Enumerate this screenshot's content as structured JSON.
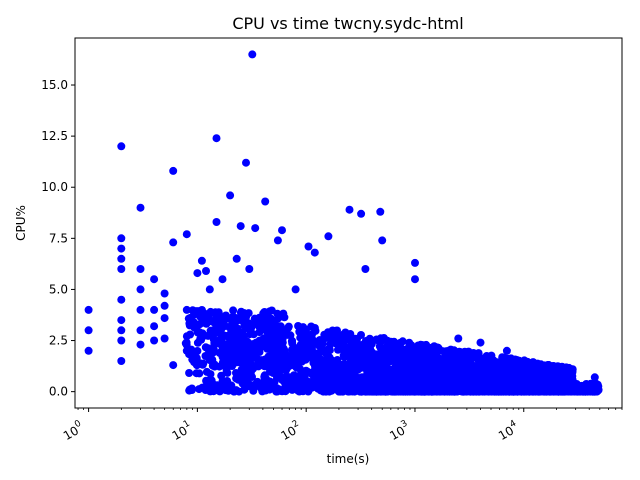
{
  "chart_data": {
    "type": "scatter",
    "title": "CPU vs time twcny.sydc-html",
    "xlabel": "time(s)",
    "ylabel": "CPU%",
    "xscale": "log",
    "xlim": [
      0.75,
      80000
    ],
    "ylim": [
      -0.8,
      17.3
    ],
    "grid": false,
    "marker_color": "#0000ff",
    "x_ticks": [
      {
        "value": 1,
        "label": "10",
        "exp": "0"
      },
      {
        "value": 10,
        "label": "10",
        "exp": "1"
      },
      {
        "value": 100,
        "label": "10",
        "exp": "2"
      },
      {
        "value": 1000,
        "label": "10",
        "exp": "3"
      },
      {
        "value": 10000,
        "label": "10",
        "exp": "4"
      }
    ],
    "y_ticks": [
      {
        "value": 0,
        "label": "0.0"
      },
      {
        "value": 2.5,
        "label": "2.5"
      },
      {
        "value": 5,
        "label": "5.0"
      },
      {
        "value": 7.5,
        "label": "7.5"
      },
      {
        "value": 10,
        "label": "10.0"
      },
      {
        "value": 12.5,
        "label": "12.5"
      },
      {
        "value": 15,
        "label": "15.0"
      }
    ],
    "outliers": [
      [
        1,
        2
      ],
      [
        1,
        3
      ],
      [
        1,
        4
      ],
      [
        2,
        1.5
      ],
      [
        2,
        2.5
      ],
      [
        2,
        3
      ],
      [
        2,
        3.5
      ],
      [
        2,
        4.5
      ],
      [
        2,
        6
      ],
      [
        2,
        6.5
      ],
      [
        2,
        7
      ],
      [
        2,
        7.5
      ],
      [
        2,
        12
      ],
      [
        3,
        2.3
      ],
      [
        3,
        3
      ],
      [
        3,
        4
      ],
      [
        3,
        5
      ],
      [
        3,
        6
      ],
      [
        3,
        9
      ],
      [
        4,
        2.5
      ],
      [
        4,
        3.2
      ],
      [
        4,
        4
      ],
      [
        4,
        5.5
      ],
      [
        5,
        2.6
      ],
      [
        5,
        3.6
      ],
      [
        5,
        4.2
      ],
      [
        5,
        4.8
      ],
      [
        6,
        1.3
      ],
      [
        6,
        7.3
      ],
      [
        6,
        10.8
      ],
      [
        8,
        2
      ],
      [
        8,
        4
      ],
      [
        8,
        7.7
      ],
      [
        10,
        5.8
      ],
      [
        11,
        6.4
      ],
      [
        12,
        5.9
      ],
      [
        13,
        5
      ],
      [
        15,
        8.3
      ],
      [
        15,
        12.4
      ],
      [
        17,
        5.5
      ],
      [
        20,
        9.6
      ],
      [
        23,
        6.5
      ],
      [
        25,
        8.1
      ],
      [
        28,
        11.2
      ],
      [
        30,
        6
      ],
      [
        32,
        16.5
      ],
      [
        34,
        8
      ],
      [
        42,
        9.3
      ],
      [
        55,
        7.4
      ],
      [
        60,
        7.9
      ],
      [
        80,
        5
      ],
      [
        105,
        7.1
      ],
      [
        120,
        6.8
      ],
      [
        160,
        7.6
      ],
      [
        250,
        8.9
      ],
      [
        320,
        8.7
      ],
      [
        350,
        6
      ],
      [
        480,
        8.8
      ],
      [
        500,
        7.4
      ],
      [
        1000,
        6.3
      ],
      [
        1000,
        5.5
      ],
      [
        2500,
        2.6
      ],
      [
        4000,
        2.4
      ],
      [
        7000,
        2
      ],
      [
        45000,
        0.7
      ]
    ]
  }
}
